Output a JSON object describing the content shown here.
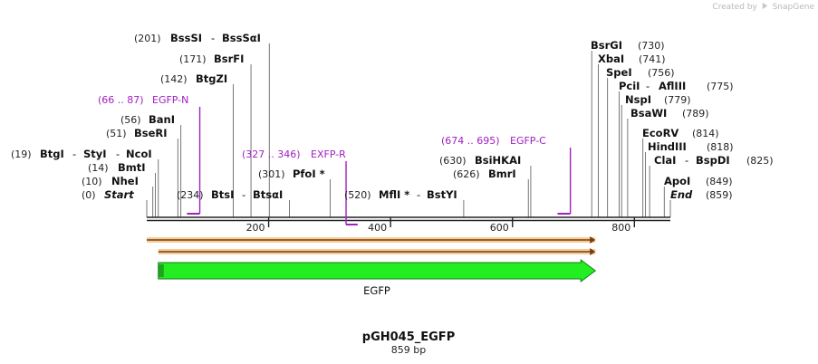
{
  "watermark": {
    "created_by": "Created by",
    "brand": "SnapGene"
  },
  "plasmid": {
    "name": "pGH045_EGFP",
    "length_label": "859 bp",
    "length_bp": 859
  },
  "axis": {
    "ticks": [
      200,
      400,
      600,
      800
    ],
    "tick_labels": [
      "200",
      "400",
      "600",
      "800"
    ]
  },
  "sites": [
    {
      "pos_label": "(201)",
      "names": [
        "BssSI",
        "BssSαI"
      ],
      "bp": 201
    },
    {
      "pos_label": "(171)",
      "names": [
        "BsrFI"
      ],
      "bp": 171
    },
    {
      "pos_label": "(142)",
      "names": [
        "BtgZI"
      ],
      "bp": 142
    },
    {
      "pos_label": "(56)",
      "names": [
        "BanI"
      ],
      "bp": 56
    },
    {
      "pos_label": "(51)",
      "names": [
        "BseRI"
      ],
      "bp": 51
    },
    {
      "pos_label": "(19)",
      "names": [
        "BtgI",
        "StyI",
        "NcoI"
      ],
      "bp": 19
    },
    {
      "pos_label": "(14)",
      "names": [
        "BmtI"
      ],
      "bp": 14
    },
    {
      "pos_label": "(10)",
      "names": [
        "NheI"
      ],
      "bp": 10
    },
    {
      "pos_label": "(0)",
      "names": [
        "Start"
      ],
      "bp": 0,
      "italic": true
    },
    {
      "pos_label": "(234)",
      "names": [
        "BtsI",
        "BtsαI"
      ],
      "bp": 234
    },
    {
      "pos_label": "(301)",
      "names": [
        "PfoI *"
      ],
      "bp": 301
    },
    {
      "pos_label": "(520)",
      "names": [
        "MflI *",
        "BstYI"
      ],
      "bp": 520
    },
    {
      "pos_label": "(630)",
      "names": [
        "BsiHKAI"
      ],
      "bp": 630
    },
    {
      "pos_label": "(626)",
      "names": [
        "BmrI"
      ],
      "bp": 626
    },
    {
      "pos_label": "(730)",
      "names": [
        "BsrGI"
      ],
      "bp": 730
    },
    {
      "pos_label": "(741)",
      "names": [
        "XbaI"
      ],
      "bp": 741
    },
    {
      "pos_label": "(756)",
      "names": [
        "SpeI"
      ],
      "bp": 756
    },
    {
      "pos_label": "(775)",
      "names": [
        "PciI",
        "AflIII"
      ],
      "bp": 775
    },
    {
      "pos_label": "(779)",
      "names": [
        "NspI"
      ],
      "bp": 779
    },
    {
      "pos_label": "(789)",
      "names": [
        "BsaWI"
      ],
      "bp": 789
    },
    {
      "pos_label": "(814)",
      "names": [
        "EcoRV"
      ],
      "bp": 814
    },
    {
      "pos_label": "(818)",
      "names": [
        "HindIII"
      ],
      "bp": 818
    },
    {
      "pos_label": "(825)",
      "names": [
        "ClaI",
        "BspDI"
      ],
      "bp": 825
    },
    {
      "pos_label": "(849)",
      "names": [
        "ApoI"
      ],
      "bp": 849
    },
    {
      "pos_label": "(859)",
      "names": [
        "End"
      ],
      "bp": 859,
      "italic": true
    }
  ],
  "primers": [
    {
      "range_label": "(66 .. 87)",
      "name": "EGFP-N",
      "start": 66,
      "end": 87,
      "direction": "forward"
    },
    {
      "range_label": "(327 .. 346)",
      "name": "EXFP-R",
      "start": 327,
      "end": 346,
      "direction": "reverse"
    },
    {
      "range_label": "(674 .. 695)",
      "name": "EGFP-C",
      "start": 674,
      "end": 695,
      "direction": "forward"
    }
  ],
  "features": [
    {
      "name": "EGFP",
      "start": 19,
      "end": 736,
      "color": "#22ee22"
    }
  ],
  "orfs": [
    {
      "start": 0,
      "end": 736,
      "color": "#f2c27a"
    },
    {
      "start": 19,
      "end": 736,
      "color": "#f2c27a"
    }
  ],
  "colors": {
    "primer": "#a020c0",
    "backbone": "#222222",
    "feature": "#22ee22",
    "orf": "#f2c27a"
  }
}
